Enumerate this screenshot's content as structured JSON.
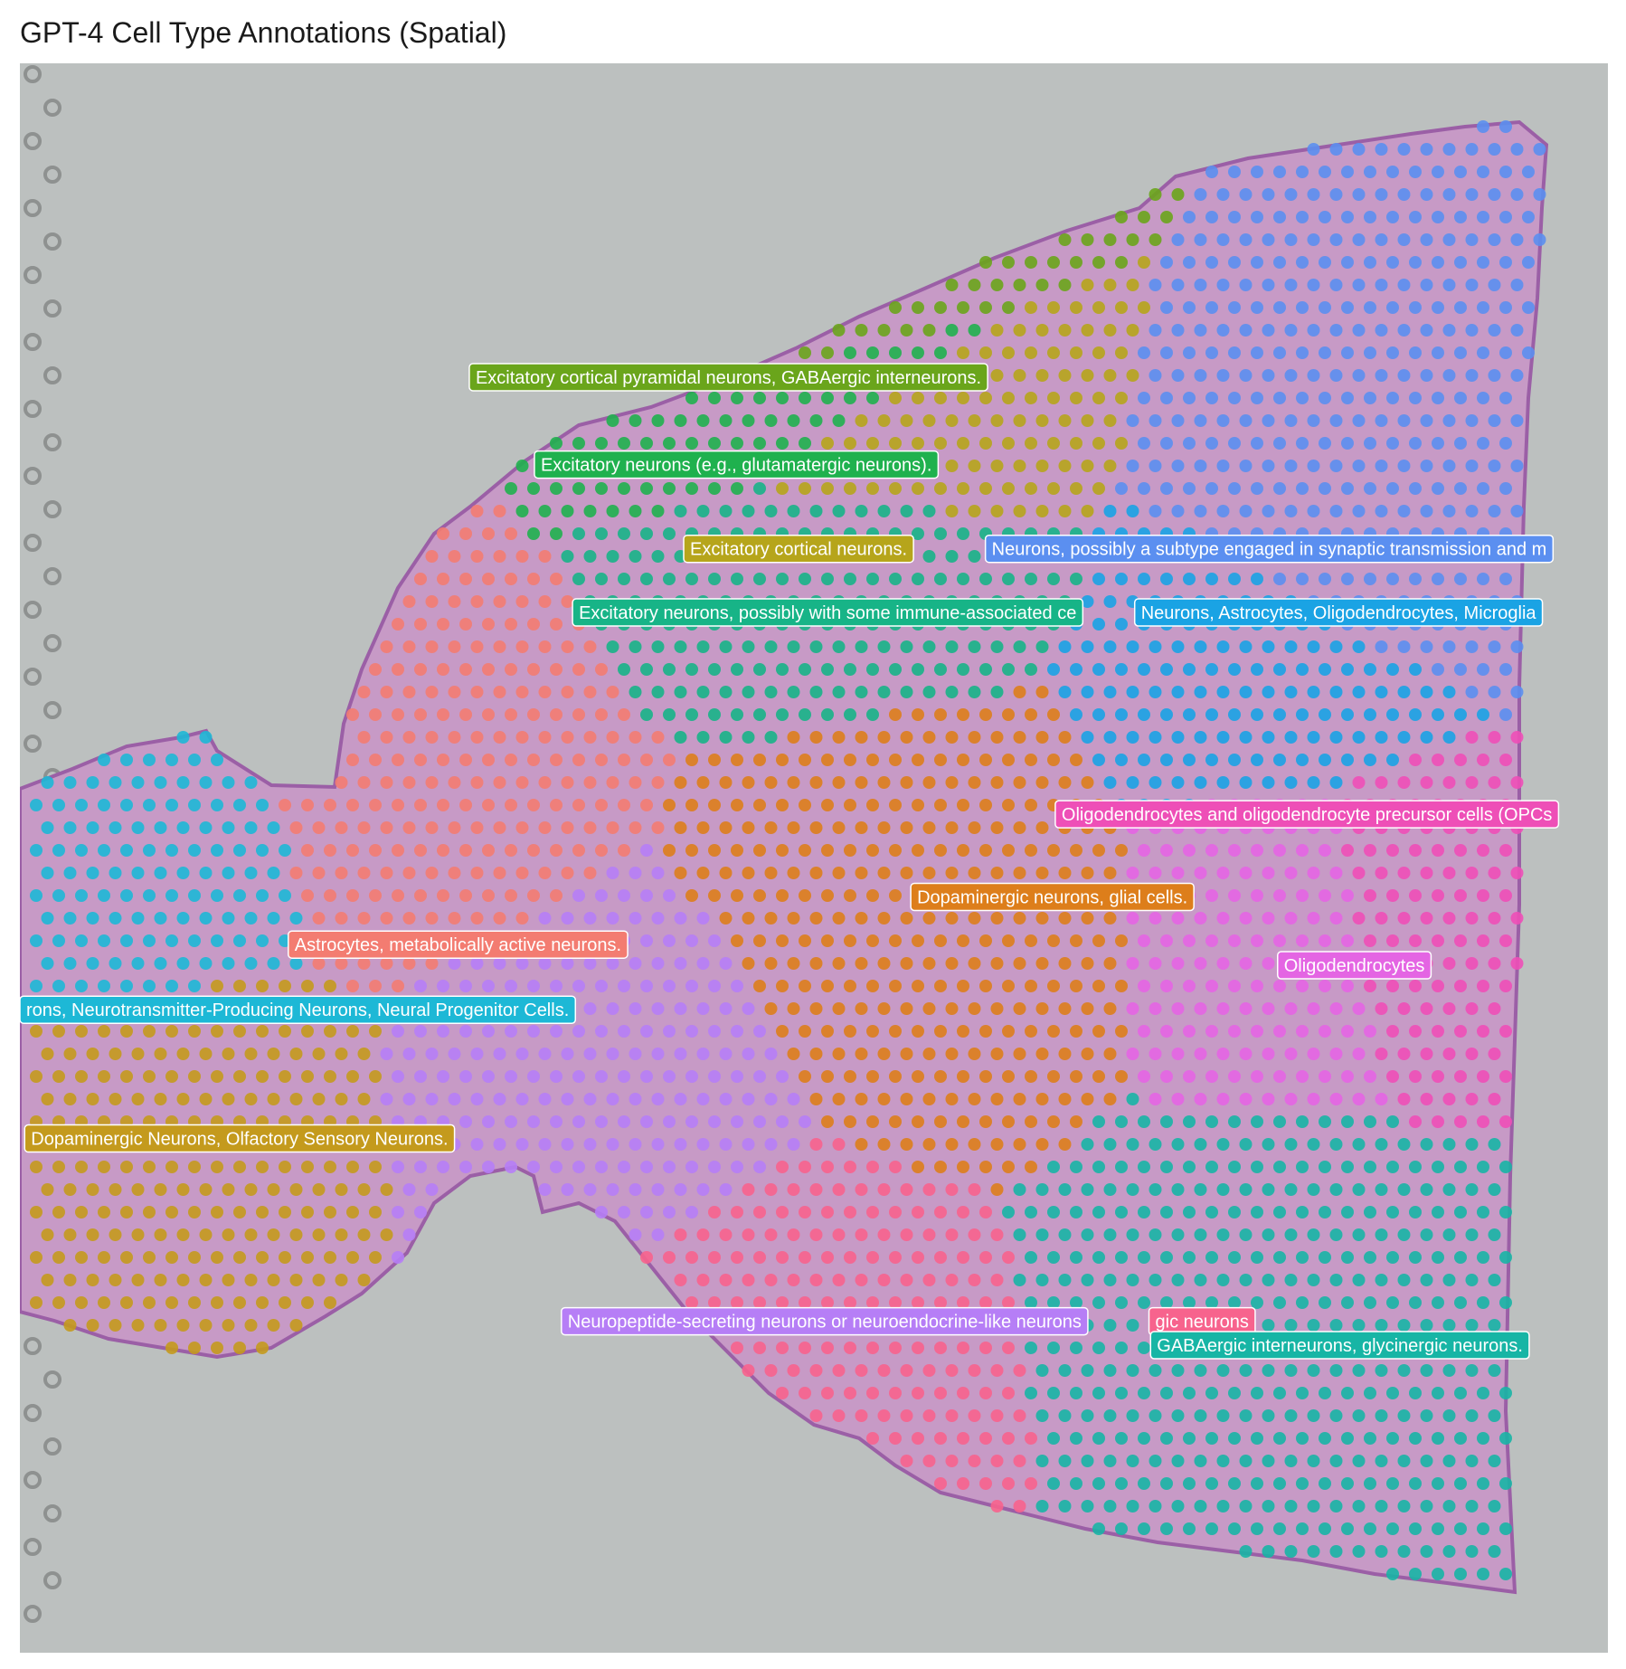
{
  "chart_data": {
    "type": "scatter",
    "title": "GPT-4 Cell Type Annotations (Spatial)",
    "xlabel": "",
    "ylabel": "",
    "xlim": [
      0,
      100
    ],
    "ylim": [
      0,
      100
    ],
    "background": "H&E tissue section image (mouse brain, sagittal)",
    "grid": false,
    "legend": "none",
    "labels": [
      {
        "text": "Excitatory cortical pyramidal neurons, GABAergic interneurons.",
        "color": "#6aa51b",
        "x": 28.3,
        "y": 79.4
      },
      {
        "text": "Excitatory neurons (e.g., glutamatergic neurons).",
        "color": "#1fb14e",
        "x": 32.4,
        "y": 73.9
      },
      {
        "text": "Excitatory cortical neurons.",
        "color": "#b6a51b",
        "x": 41.8,
        "y": 68.6
      },
      {
        "text": "Neurons, possibly a subtype engaged in synaptic transmission and m",
        "color": "#5b8ff0",
        "x": 60.8,
        "y": 68.6
      },
      {
        "text": "Excitatory neurons, possibly with some immune-associated ce",
        "color": "#17b487",
        "x": 34.8,
        "y": 64.6
      },
      {
        "text": "Neurons, Astrocytes, Oligodendrocytes, Microglia",
        "color": "#1aa3e4",
        "x": 70.2,
        "y": 64.6
      },
      {
        "text": "Oligodendrocytes and oligodendrocyte precursor cells (OPCs",
        "color": "#ee4fb7",
        "x": 65.2,
        "y": 51.9
      },
      {
        "text": "Dopaminergic neurons, glial cells.",
        "color": "#dd7e1b",
        "x": 56.1,
        "y": 46.7
      },
      {
        "text": "Oligodendrocytes",
        "color": "#e465e3",
        "x": 79.2,
        "y": 42.4
      },
      {
        "text": "Astrocytes, metabolically active neurons.",
        "color": "#f37c71",
        "x": 16.9,
        "y": 43.7
      },
      {
        "text": "rons, Neurotransmitter-Producing Neurons, Neural Progenitor Cells.",
        "color": "#1db8d6",
        "x": 0,
        "y": 39.6
      },
      {
        "text": "Dopaminergic Neurons, Olfactory Sensory Neurons.",
        "color": "#c49a1d",
        "x": 0.3,
        "y": 31.5
      },
      {
        "text": "gic neurons",
        "color": "#f7638d",
        "x": 71.1,
        "y": 20.0
      },
      {
        "text": "Neuropeptide-secreting neurons or neuroendocrine-like neurons",
        "color": "#b67ef6",
        "x": 34.1,
        "y": 20.0
      },
      {
        "text": "GABAergic interneurons, glycinergic neurons.",
        "color": "#17b5a5",
        "x": 71.2,
        "y": 18.5
      }
    ],
    "series": [
      {
        "name": "Excitatory cortical pyramidal neurons, GABAergic interneurons.",
        "color": "#6aa51b"
      },
      {
        "name": "Excitatory neurons (e.g., glutamatergic neurons).",
        "color": "#1fb14e"
      },
      {
        "name": "Excitatory cortical neurons.",
        "color": "#b6a51b"
      },
      {
        "name": "Neurons, possibly a subtype engaged in synaptic transmission and m",
        "color": "#5b8ff0"
      },
      {
        "name": "Excitatory neurons, possibly with some immune-associated ce",
        "color": "#17b487"
      },
      {
        "name": "Neurons, Astrocytes, Oligodendrocytes, Microglia",
        "color": "#1aa3e4"
      },
      {
        "name": "Oligodendrocytes and oligodendrocyte precursor cells (OPCs",
        "color": "#ee4fb7"
      },
      {
        "name": "Dopaminergic neurons, glial cells.",
        "color": "#dd7e1b"
      },
      {
        "name": "Oligodendrocytes",
        "color": "#e465e3"
      },
      {
        "name": "Astrocytes, metabolically active neurons.",
        "color": "#f37c71"
      },
      {
        "name": "rons, Neurotransmitter-Producing Neurons, Neural Progenitor Cells.",
        "color": "#1db8d6"
      },
      {
        "name": "Dopaminergic Neurons, Olfactory Sensory Neurons.",
        "color": "#c49a1d"
      },
      {
        "name": "gic neurons",
        "color": "#f7638d"
      },
      {
        "name": "Neuropeptide-secreting neurons or neuroendocrine-like neurons",
        "color": "#b67ef6"
      },
      {
        "name": "GABAergic interneurons, glycinergic neurons.",
        "color": "#17b5a5"
      }
    ]
  }
}
